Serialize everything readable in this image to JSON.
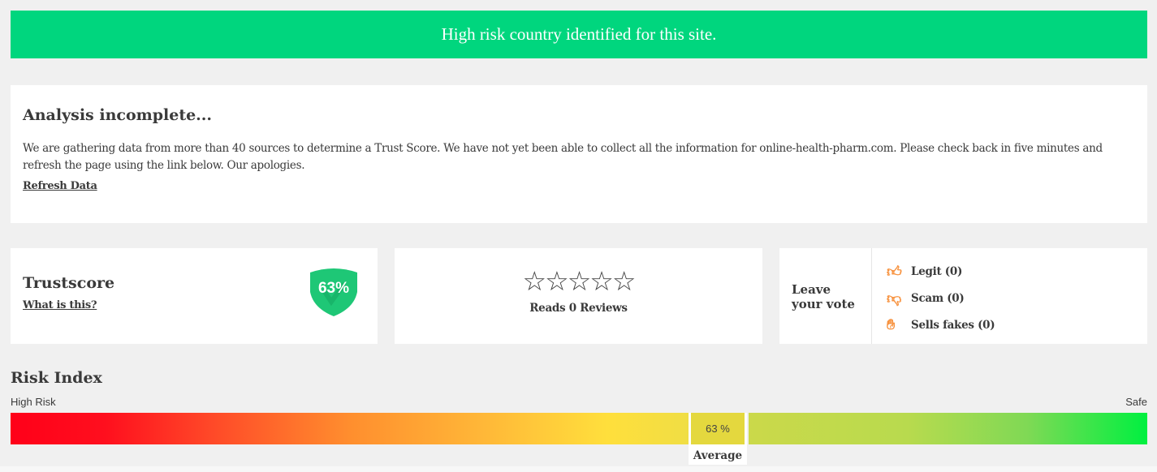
{
  "banner": {
    "text": "High risk country identified for this site.",
    "color": "#00d67e"
  },
  "analysis": {
    "title": "Analysis incomplete...",
    "body": "We are gathering data from more than 40 sources to determine a Trust Score. We have not yet been able to collect all the information for online-health-pharm.com. Please check back in five minutes and refresh the page using the link below. Our apologies.",
    "refresh_label": "Refresh Data"
  },
  "trustscore": {
    "title": "Trustscore",
    "what_label": "What is this?",
    "score": "63%",
    "icon": "shield-icon"
  },
  "reviews": {
    "stars_filled": 0,
    "stars_total": 5,
    "label": "Reads 0 Reviews"
  },
  "vote": {
    "title_line1": "Leave",
    "title_line2": "your vote",
    "items": [
      {
        "icon": "thumbs-up-icon",
        "label": "Legit (0)"
      },
      {
        "icon": "thumbs-down-icon",
        "label": "Scam (0)"
      },
      {
        "icon": "hand-icon",
        "label": "Sells fakes (0)"
      }
    ],
    "accent": "#f7913d"
  },
  "risk": {
    "title": "Risk Index",
    "left_label": "High Risk",
    "right_label": "Safe",
    "value_label": "63 %",
    "value_percent": 63,
    "level_label": "Average"
  }
}
